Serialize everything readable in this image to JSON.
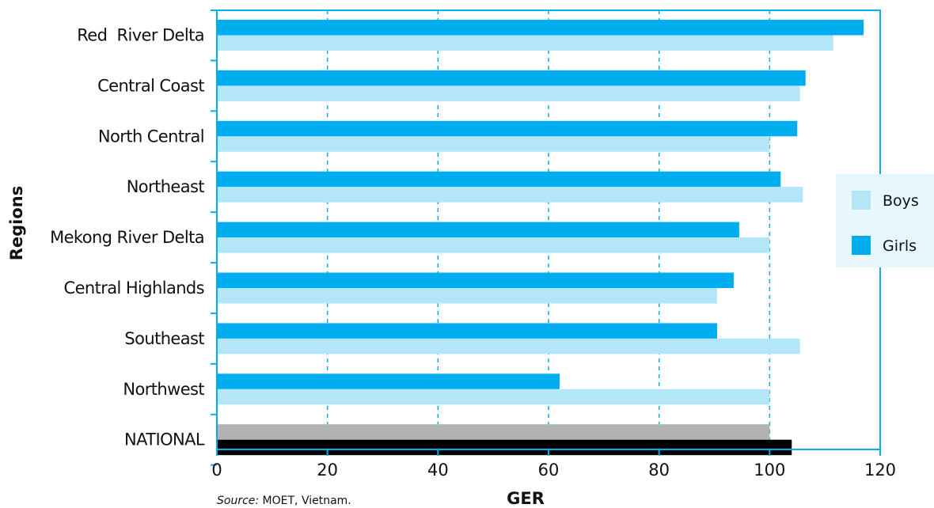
{
  "chart_data": {
    "type": "bar",
    "orientation": "horizontal",
    "xlabel": "GER",
    "ylabel": "Regions",
    "xlim": [
      0,
      120
    ],
    "xticks": [
      0,
      20,
      40,
      60,
      80,
      100,
      120
    ],
    "grid": "vertical dashed",
    "legend_position": "right",
    "categories": [
      "Red  River Delta",
      "Central Coast",
      "North Central",
      "Northeast",
      "Mekong River Delta",
      "Central Highlands",
      "Southeast",
      "Northwest",
      "NATIONAL"
    ],
    "series": [
      {
        "name": "Girls",
        "color": "#00aeef",
        "highlight_color": "#000000",
        "values": [
          117,
          106.5,
          105,
          102,
          94.5,
          93.5,
          90.5,
          62,
          104
        ]
      },
      {
        "name": "Boys",
        "color": "#b3e6f8",
        "highlight_color": "#b3b3b3",
        "values": [
          111.5,
          105.5,
          100,
          106,
          100,
          90.5,
          105.5,
          100,
          100
        ]
      }
    ],
    "legend": [
      {
        "label": "Boys",
        "color": "#b3e6f8"
      },
      {
        "label": "Girls",
        "color": "#00aeef"
      }
    ]
  },
  "source": {
    "prefix": "Source:",
    "text": " MOET, Vietnam."
  },
  "colors": {
    "frame": "#00aeef",
    "legend_bg": "#e6f7fd",
    "grid": "#00aeef"
  }
}
